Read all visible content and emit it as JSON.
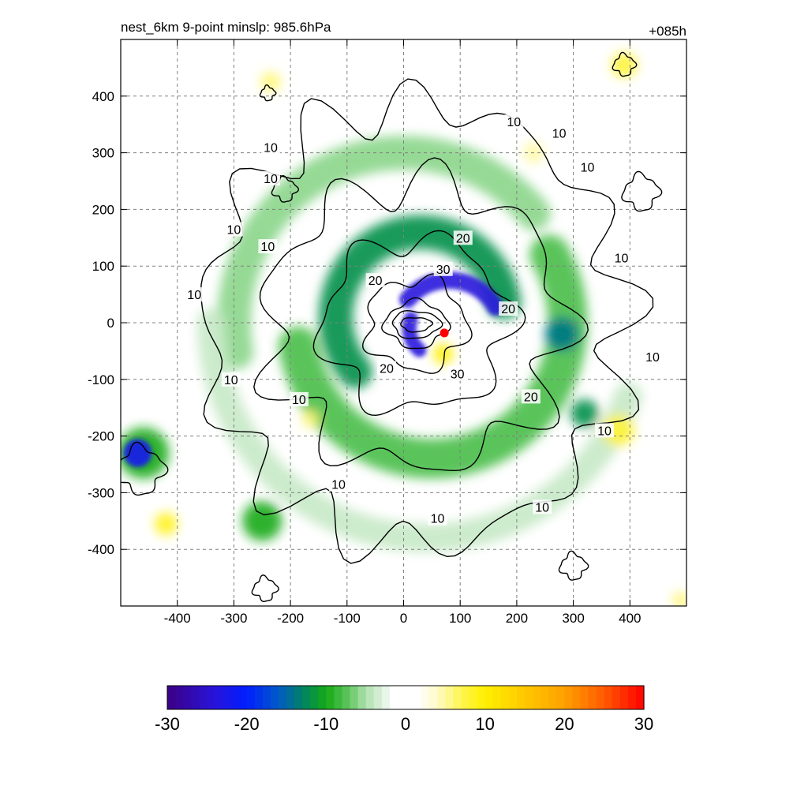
{
  "chart_data": {
    "type": "heatmap",
    "title": "nest_6km  9-point minslp: 985.6hPa",
    "forecast_hour": "+085h",
    "xlabel": "",
    "ylabel": "",
    "xlim": [
      -500,
      500
    ],
    "ylim": [
      -500,
      500
    ],
    "grid": true,
    "x_ticks": [
      -400,
      -300,
      -200,
      -100,
      0,
      100,
      200,
      300,
      400
    ],
    "y_ticks": [
      400,
      300,
      200,
      100,
      0,
      -100,
      -200,
      -300,
      -400
    ],
    "x_tick_labels": [
      "-400",
      "-300",
      "-200",
      "-100",
      "0",
      "100",
      "200",
      "300",
      "400"
    ],
    "y_tick_labels": [
      "400",
      "300",
      "200",
      "100",
      "0",
      "-100",
      "-200",
      "-300",
      "-400"
    ],
    "colorbar": {
      "min": -30,
      "max": 30,
      "tick_values": [
        -30,
        -20,
        -10,
        0,
        10,
        20,
        30
      ],
      "tick_labels": [
        "-30",
        "-20",
        "-10",
        "0",
        "10",
        "20",
        "30"
      ]
    },
    "contour_levels": [
      10,
      20,
      30
    ],
    "contour_labels": [
      {
        "text": "10",
        "x": -235,
        "y": 310
      },
      {
        "text": "10",
        "x": -235,
        "y": 255
      },
      {
        "text": "10",
        "x": -300,
        "y": 165
      },
      {
        "text": "10",
        "x": -240,
        "y": 135
      },
      {
        "text": "10",
        "x": -370,
        "y": 50
      },
      {
        "text": "10",
        "x": -305,
        "y": -100
      },
      {
        "text": "10",
        "x": -185,
        "y": -135
      },
      {
        "text": "10",
        "x": -115,
        "y": -285
      },
      {
        "text": "10",
        "x": 60,
        "y": -345
      },
      {
        "text": "10",
        "x": 245,
        "y": -325
      },
      {
        "text": "10",
        "x": 355,
        "y": -190
      },
      {
        "text": "10",
        "x": 440,
        "y": -60
      },
      {
        "text": "10",
        "x": 385,
        "y": 115
      },
      {
        "text": "10",
        "x": 325,
        "y": 275
      },
      {
        "text": "10",
        "x": 275,
        "y": 335
      },
      {
        "text": "10",
        "x": 195,
        "y": 355
      },
      {
        "text": "20",
        "x": 105,
        "y": 150
      },
      {
        "text": "20",
        "x": -50,
        "y": 75
      },
      {
        "text": "20",
        "x": -30,
        "y": -80
      },
      {
        "text": "20",
        "x": 185,
        "y": 25
      },
      {
        "text": "20",
        "x": 225,
        "y": -130
      },
      {
        "text": "30",
        "x": 70,
        "y": 95
      },
      {
        "text": "30",
        "x": 95,
        "y": -90
      }
    ],
    "features": {
      "storm_center": {
        "x": 72,
        "y": -18,
        "color": "#ff0000"
      },
      "negative_bands": [
        {
          "cx": 30,
          "cy": 10,
          "r": 150,
          "thickness": 60,
          "start_deg": 10,
          "end_deg": 220,
          "value": -12
        },
        {
          "cx": 80,
          "cy": -20,
          "r": 95,
          "thickness": 30,
          "start_deg": 30,
          "end_deg": 140,
          "value": -24
        },
        {
          "cx": 60,
          "cy": -10,
          "r": 50,
          "thickness": 25,
          "start_deg": 160,
          "end_deg": 230,
          "value": -24
        },
        {
          "cx": 50,
          "cy": 0,
          "r": 240,
          "thickness": 70,
          "start_deg": -170,
          "end_deg": 30,
          "value": -8
        },
        {
          "cx": 0,
          "cy": 0,
          "r": 300,
          "thickness": 60,
          "start_deg": 40,
          "end_deg": 190,
          "value": -6
        },
        {
          "cx": 40,
          "cy": 0,
          "r": 380,
          "thickness": 50,
          "start_deg": 180,
          "end_deg": 340,
          "value": -4
        }
      ],
      "blobs": [
        {
          "x": -470,
          "y": -230,
          "r": 25,
          "value": -22
        },
        {
          "x": -460,
          "y": -230,
          "r": 45,
          "value": -10
        },
        {
          "x": 280,
          "y": -20,
          "r": 30,
          "value": -14
        },
        {
          "x": 320,
          "y": -160,
          "r": 25,
          "value": -12
        },
        {
          "x": -250,
          "y": -350,
          "r": 35,
          "value": -10
        },
        {
          "x": 380,
          "y": -190,
          "r": 28,
          "value": 8
        },
        {
          "x": 390,
          "y": 455,
          "r": 22,
          "value": 8
        },
        {
          "x": 70,
          "y": -55,
          "r": 18,
          "value": 10
        },
        {
          "x": -420,
          "y": -355,
          "r": 20,
          "value": 9
        },
        {
          "x": -235,
          "y": 425,
          "r": 18,
          "value": 6
        },
        {
          "x": -165,
          "y": -170,
          "r": 15,
          "value": 6
        },
        {
          "x": 230,
          "y": 300,
          "r": 18,
          "value": 5
        },
        {
          "x": 490,
          "y": -490,
          "r": 15,
          "value": 6
        }
      ]
    }
  }
}
